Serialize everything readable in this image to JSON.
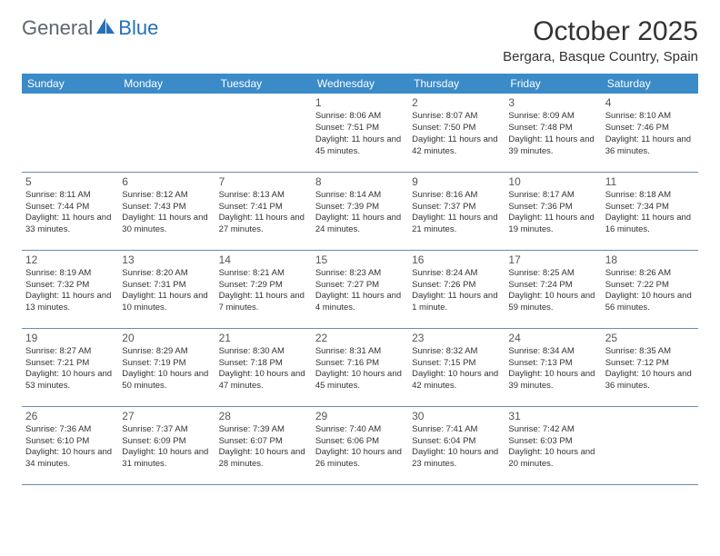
{
  "logo": {
    "text1": "General",
    "text2": "Blue"
  },
  "title": "October 2025",
  "location": "Bergara, Basque Country, Spain",
  "colors": {
    "header_bg": "#3b8bc9",
    "header_text": "#ffffff",
    "border": "#6a8caa",
    "logo_gray": "#5b6670",
    "logo_blue": "#2471b8",
    "body_text": "#333333",
    "background": "#ffffff"
  },
  "weekdays": [
    "Sunday",
    "Monday",
    "Tuesday",
    "Wednesday",
    "Thursday",
    "Friday",
    "Saturday"
  ],
  "weeks": [
    [
      null,
      null,
      null,
      {
        "n": "1",
        "sr": "8:06 AM",
        "ss": "7:51 PM",
        "dl": "11 hours and 45 minutes."
      },
      {
        "n": "2",
        "sr": "8:07 AM",
        "ss": "7:50 PM",
        "dl": "11 hours and 42 minutes."
      },
      {
        "n": "3",
        "sr": "8:09 AM",
        "ss": "7:48 PM",
        "dl": "11 hours and 39 minutes."
      },
      {
        "n": "4",
        "sr": "8:10 AM",
        "ss": "7:46 PM",
        "dl": "11 hours and 36 minutes."
      }
    ],
    [
      {
        "n": "5",
        "sr": "8:11 AM",
        "ss": "7:44 PM",
        "dl": "11 hours and 33 minutes."
      },
      {
        "n": "6",
        "sr": "8:12 AM",
        "ss": "7:43 PM",
        "dl": "11 hours and 30 minutes."
      },
      {
        "n": "7",
        "sr": "8:13 AM",
        "ss": "7:41 PM",
        "dl": "11 hours and 27 minutes."
      },
      {
        "n": "8",
        "sr": "8:14 AM",
        "ss": "7:39 PM",
        "dl": "11 hours and 24 minutes."
      },
      {
        "n": "9",
        "sr": "8:16 AM",
        "ss": "7:37 PM",
        "dl": "11 hours and 21 minutes."
      },
      {
        "n": "10",
        "sr": "8:17 AM",
        "ss": "7:36 PM",
        "dl": "11 hours and 19 minutes."
      },
      {
        "n": "11",
        "sr": "8:18 AM",
        "ss": "7:34 PM",
        "dl": "11 hours and 16 minutes."
      }
    ],
    [
      {
        "n": "12",
        "sr": "8:19 AM",
        "ss": "7:32 PM",
        "dl": "11 hours and 13 minutes."
      },
      {
        "n": "13",
        "sr": "8:20 AM",
        "ss": "7:31 PM",
        "dl": "11 hours and 10 minutes."
      },
      {
        "n": "14",
        "sr": "8:21 AM",
        "ss": "7:29 PM",
        "dl": "11 hours and 7 minutes."
      },
      {
        "n": "15",
        "sr": "8:23 AM",
        "ss": "7:27 PM",
        "dl": "11 hours and 4 minutes."
      },
      {
        "n": "16",
        "sr": "8:24 AM",
        "ss": "7:26 PM",
        "dl": "11 hours and 1 minute."
      },
      {
        "n": "17",
        "sr": "8:25 AM",
        "ss": "7:24 PM",
        "dl": "10 hours and 59 minutes."
      },
      {
        "n": "18",
        "sr": "8:26 AM",
        "ss": "7:22 PM",
        "dl": "10 hours and 56 minutes."
      }
    ],
    [
      {
        "n": "19",
        "sr": "8:27 AM",
        "ss": "7:21 PM",
        "dl": "10 hours and 53 minutes."
      },
      {
        "n": "20",
        "sr": "8:29 AM",
        "ss": "7:19 PM",
        "dl": "10 hours and 50 minutes."
      },
      {
        "n": "21",
        "sr": "8:30 AM",
        "ss": "7:18 PM",
        "dl": "10 hours and 47 minutes."
      },
      {
        "n": "22",
        "sr": "8:31 AM",
        "ss": "7:16 PM",
        "dl": "10 hours and 45 minutes."
      },
      {
        "n": "23",
        "sr": "8:32 AM",
        "ss": "7:15 PM",
        "dl": "10 hours and 42 minutes."
      },
      {
        "n": "24",
        "sr": "8:34 AM",
        "ss": "7:13 PM",
        "dl": "10 hours and 39 minutes."
      },
      {
        "n": "25",
        "sr": "8:35 AM",
        "ss": "7:12 PM",
        "dl": "10 hours and 36 minutes."
      }
    ],
    [
      {
        "n": "26",
        "sr": "7:36 AM",
        "ss": "6:10 PM",
        "dl": "10 hours and 34 minutes."
      },
      {
        "n": "27",
        "sr": "7:37 AM",
        "ss": "6:09 PM",
        "dl": "10 hours and 31 minutes."
      },
      {
        "n": "28",
        "sr": "7:39 AM",
        "ss": "6:07 PM",
        "dl": "10 hours and 28 minutes."
      },
      {
        "n": "29",
        "sr": "7:40 AM",
        "ss": "6:06 PM",
        "dl": "10 hours and 26 minutes."
      },
      {
        "n": "30",
        "sr": "7:41 AM",
        "ss": "6:04 PM",
        "dl": "10 hours and 23 minutes."
      },
      {
        "n": "31",
        "sr": "7:42 AM",
        "ss": "6:03 PM",
        "dl": "10 hours and 20 minutes."
      },
      null
    ]
  ],
  "labels": {
    "sunrise": "Sunrise: ",
    "sunset": "Sunset: ",
    "daylight": "Daylight: "
  }
}
